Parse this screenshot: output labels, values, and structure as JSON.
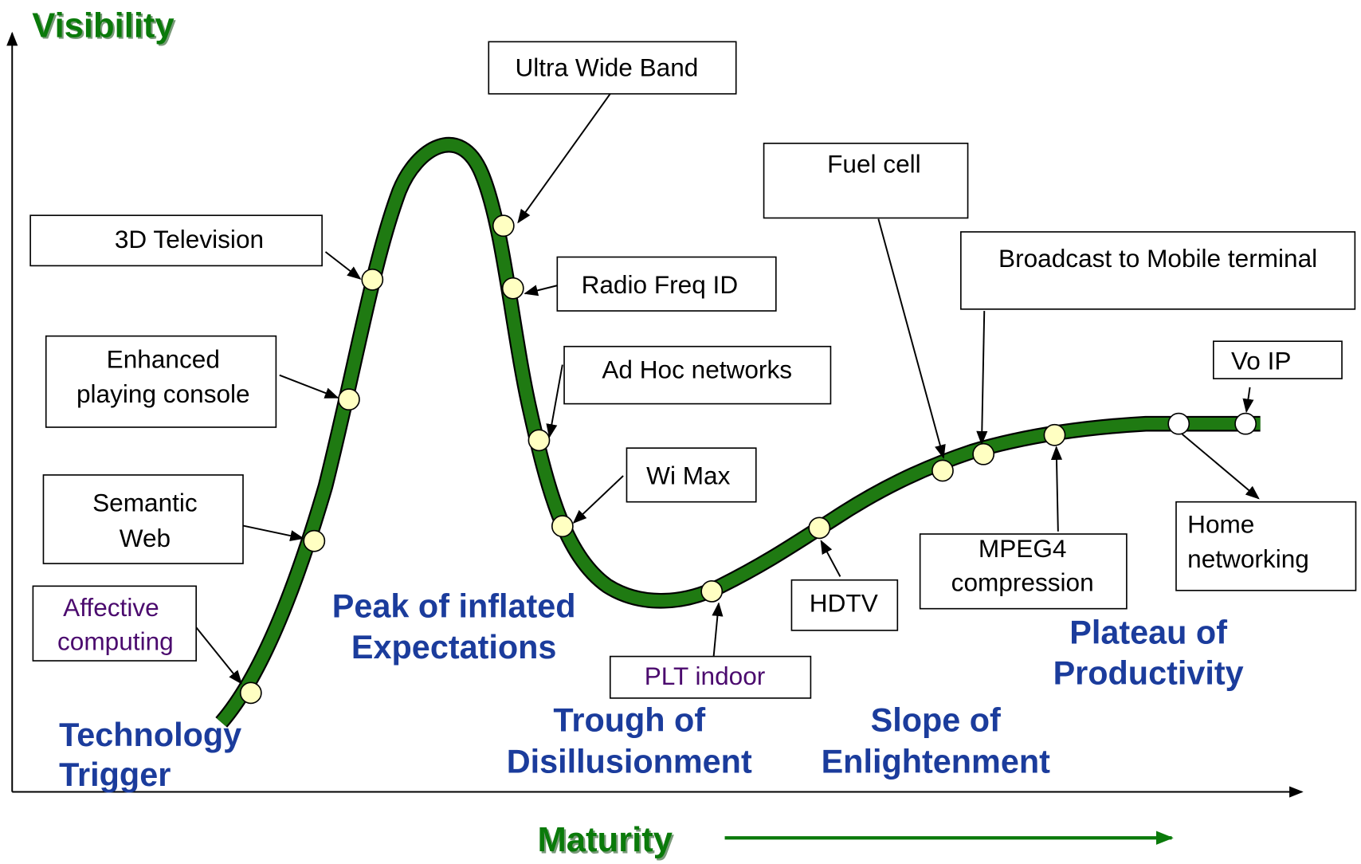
{
  "axes": {
    "y_label": "Visibility",
    "x_label": "Maturity"
  },
  "technologies": [
    {
      "lines": [
        "Ultra Wide Band"
      ]
    },
    {
      "lines": [
        "3D Television"
      ]
    },
    {
      "lines": [
        "Radio Freq ID"
      ]
    },
    {
      "lines": [
        "Enhanced",
        "playing console"
      ]
    },
    {
      "lines": [
        "Ad Hoc networks"
      ]
    },
    {
      "lines": [
        "Semantic",
        "Web"
      ]
    },
    {
      "lines": [
        "Wi Max"
      ]
    },
    {
      "lines": [
        "Affective",
        "computing"
      ]
    },
    {
      "lines": [
        "PLT indoor"
      ]
    },
    {
      "lines": [
        "HDTV"
      ]
    },
    {
      "lines": [
        "Fuel cell"
      ]
    },
    {
      "lines": [
        "Broadcast to Mobile terminal"
      ]
    },
    {
      "lines": [
        "MPEG4",
        "compression"
      ]
    },
    {
      "lines": [
        "Vo IP"
      ]
    },
    {
      "lines": [
        "Home",
        "networking"
      ]
    }
  ],
  "phases": [
    {
      "lines": [
        "Technology",
        "Trigger"
      ]
    },
    {
      "lines": [
        "Peak of inflated",
        "Expectations"
      ]
    },
    {
      "lines": [
        "Trough of",
        "Disillusionment"
      ]
    },
    {
      "lines": [
        "Slope of",
        "Enlightenment"
      ]
    },
    {
      "lines": [
        "Plateau of",
        "Productivity"
      ]
    }
  ]
}
